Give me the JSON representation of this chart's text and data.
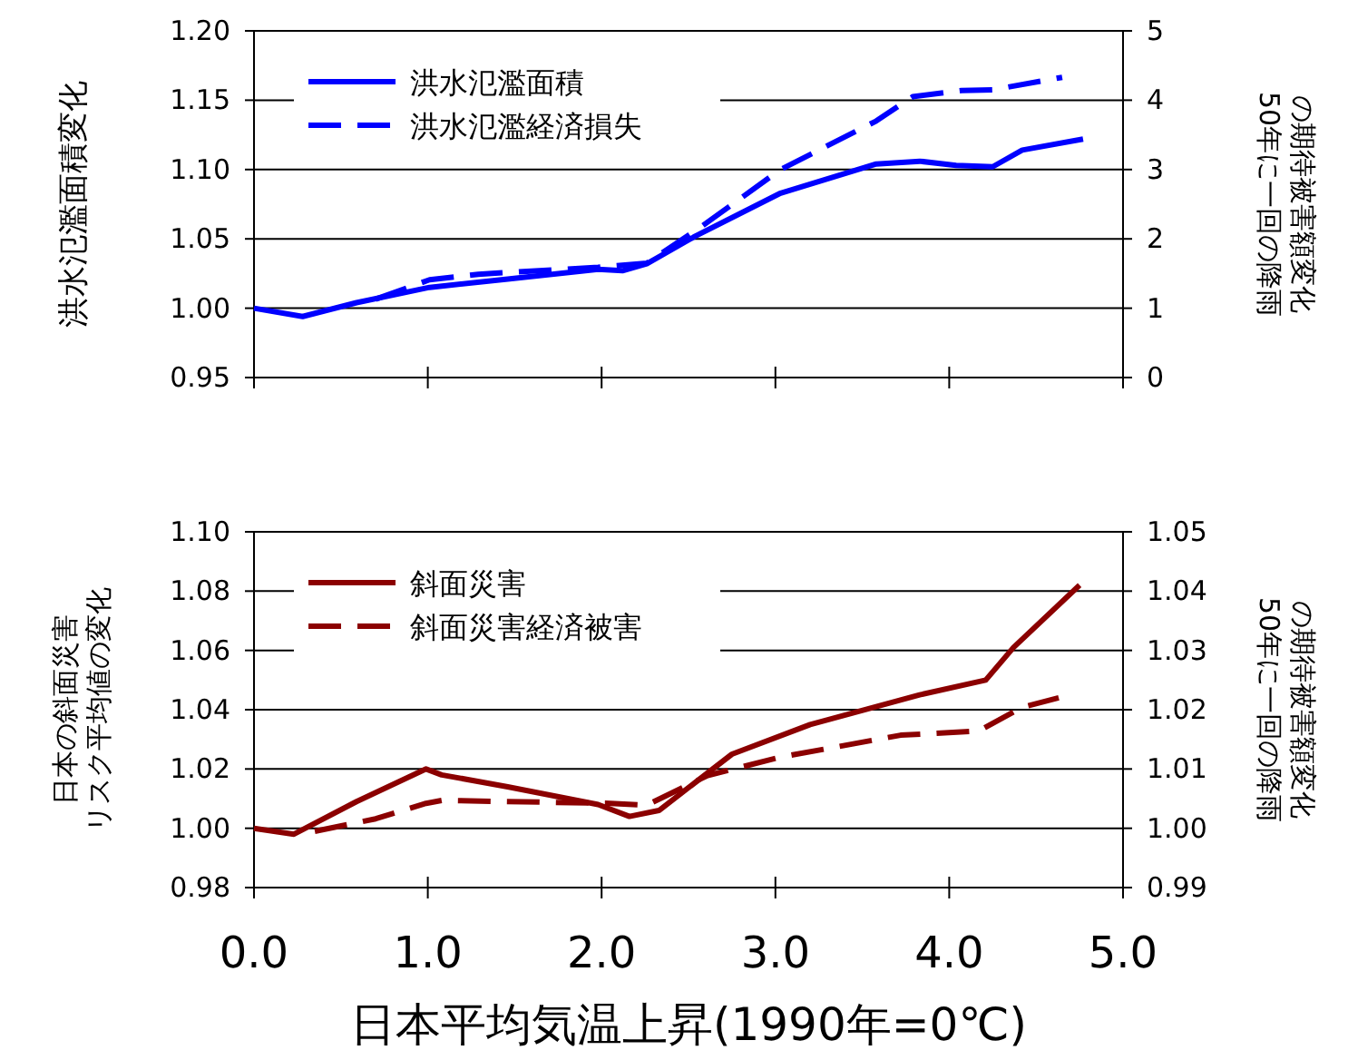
{
  "chart_data": [
    {
      "type": "line",
      "ylabel": "洪水氾濫面積変化",
      "y2label": "50年に一回の降雨の期待被害額変化",
      "xlim": [
        0,
        5
      ],
      "xticks": [
        0,
        1,
        2,
        3,
        4,
        5
      ],
      "ylim": [
        0.95,
        1.2
      ],
      "yticks": [
        {
          "value": 0.95,
          "label": "0.95"
        },
        {
          "value": 1,
          "label": "1.00"
        },
        {
          "value": 1.05,
          "label": "1.05"
        },
        {
          "value": 1.1,
          "label": "1.10"
        },
        {
          "value": 1.15,
          "label": "1.15"
        },
        {
          "value": 1.2,
          "label": "1.20"
        }
      ],
      "y2lim": [
        0,
        5
      ],
      "y2ticks": [
        0,
        1,
        2,
        3,
        4,
        5
      ],
      "grid": "y",
      "legend": "top left",
      "tick_labels": "y",
      "series": [
        {
          "name": "洪水氾濫面積",
          "color": "#0000ff",
          "line_style": "solid",
          "x": [
            0,
            0.28,
            0.59,
            1.01,
            1.46,
            1.98,
            2.12,
            2.26,
            2.54,
            3.03,
            3.58,
            3.83,
            4.04,
            4.25,
            4.42,
            4.77
          ],
          "values": [
            1.0,
            0.994,
            1.004,
            1.015,
            1.021,
            1.028,
            1.027,
            1.032,
            1.052,
            1.083,
            1.104,
            1.106,
            1.103,
            1.102,
            1.114,
            1.122
          ]
        },
        {
          "name": "洪水氾濫経済損失",
          "color": "#0000ff",
          "line_style": "dashed",
          "axis": "y2",
          "x": [
            0.7,
            1.01,
            1.29,
            1.98,
            2.26,
            2.57,
            3.03,
            3.58,
            3.79,
            4.07,
            4.25,
            4.65
          ],
          "values": [
            1.13,
            1.41,
            1.49,
            1.59,
            1.65,
            2.17,
            3.0,
            3.7,
            4.05,
            4.14,
            4.15,
            4.33
          ]
        }
      ]
    },
    {
      "type": "line",
      "xlabel": "日本平均気温上昇(1990年=0℃)",
      "ylabel": "日本の斜面災害リスク平均値の変化",
      "y2label": "50年に一回の降雨の期待被害額変化",
      "xlim": [
        0,
        5
      ],
      "xticks": [
        {
          "value": 0,
          "label": "0.0"
        },
        {
          "value": 1,
          "label": "1.0"
        },
        {
          "value": 2,
          "label": "2.0"
        },
        {
          "value": 3,
          "label": "3.0"
        },
        {
          "value": 4,
          "label": "4.0"
        },
        {
          "value": 5,
          "label": "5.0"
        }
      ],
      "ylim": [
        0.98,
        1.1
      ],
      "yticks": [
        {
          "value": 0.98,
          "label": "0.98"
        },
        {
          "value": 1,
          "label": "1.00"
        },
        {
          "value": 1.02,
          "label": "1.02"
        },
        {
          "value": 1.04,
          "label": "1.04"
        },
        {
          "value": 1.06,
          "label": "1.06"
        },
        {
          "value": 1.08,
          "label": "1.08"
        },
        {
          "value": 1.1,
          "label": "1.10"
        }
      ],
      "y2lim": [
        0.99,
        1.05
      ],
      "y2ticks": [
        {
          "value": 0.99,
          "label": "0.99"
        },
        {
          "value": 1,
          "label": "1.00"
        },
        {
          "value": 1.01,
          "label": "1.01"
        },
        {
          "value": 1.02,
          "label": "1.02"
        },
        {
          "value": 1.03,
          "label": "1.03"
        },
        {
          "value": 1.04,
          "label": "1.04"
        },
        {
          "value": 1.05,
          "label": "1.05"
        }
      ],
      "grid": "y",
      "legend": "top left",
      "series": [
        {
          "name": "斜面災害",
          "color": "#8b0000",
          "line_style": "solid",
          "x": [
            0,
            0.23,
            0.59,
            0.99,
            1.08,
            1.46,
            1.98,
            2.16,
            2.33,
            2.75,
            3.2,
            3.83,
            4.21,
            4.37,
            4.75
          ],
          "values": [
            1.0,
            0.998,
            1.009,
            1.02,
            1.018,
            1.014,
            1.008,
            1.004,
            1.006,
            1.025,
            1.035,
            1.045,
            1.05,
            1.061,
            1.082
          ]
        },
        {
          "name": "斜面災害経済被害",
          "color": "#8b0000",
          "line_style": "dashed",
          "axis": "y2",
          "x": [
            0.35,
            0.7,
            0.99,
            1.08,
            2.05,
            2.26,
            2.61,
            3.03,
            3.72,
            4.17,
            4.42,
            4.63
          ],
          "values": [
            0.9995,
            1.0016,
            1.0042,
            1.0047,
            1.0042,
            1.0039,
            1.0089,
            1.012,
            1.0157,
            1.0164,
            1.0204,
            1.022
          ]
        }
      ]
    }
  ]
}
